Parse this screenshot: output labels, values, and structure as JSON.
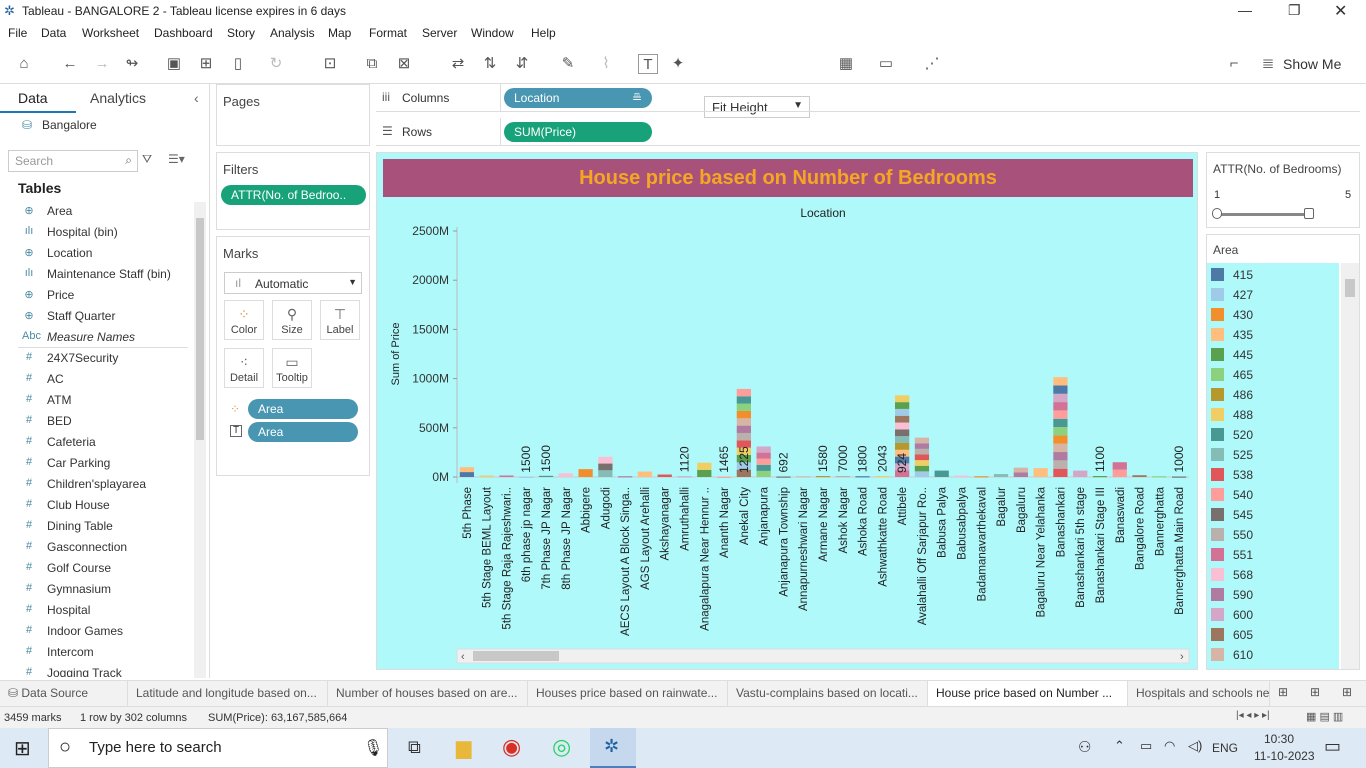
{
  "window": {
    "title": "Tableau - BANGALORE 2 - Tableau license expires in 6 days"
  },
  "menu": [
    "File",
    "Data",
    "Worksheet",
    "Dashboard",
    "Story",
    "Analysis",
    "Map",
    "Format",
    "Server",
    "Window",
    "Help"
  ],
  "toolbar": {
    "fit": "Fit Height",
    "show_me": "Show Me"
  },
  "left": {
    "tab_data": "Data",
    "tab_analytics": "Analytics",
    "datasource": "Bangalore",
    "search_placeholder": "Search",
    "tables_header": "Tables",
    "fields": [
      {
        "icon": "globe-icon",
        "glyph": "⊕",
        "name": "Area"
      },
      {
        "icon": "bin-icon",
        "glyph": "ılı",
        "name": "Hospital (bin)"
      },
      {
        "icon": "globe-icon",
        "glyph": "⊕",
        "name": "Location"
      },
      {
        "icon": "bin-icon",
        "glyph": "ılı",
        "name": "Maintenance Staff (bin)"
      },
      {
        "icon": "globe-icon",
        "glyph": "⊕",
        "name": "Price"
      },
      {
        "icon": "globe-icon",
        "glyph": "⊕",
        "name": "Staff Quarter"
      },
      {
        "icon": "abc-icon",
        "glyph": "Abc",
        "name": "Measure Names"
      },
      {
        "icon": "hash-icon",
        "glyph": "#",
        "name": "24X7Security"
      },
      {
        "icon": "hash-icon",
        "glyph": "#",
        "name": "AC"
      },
      {
        "icon": "hash-icon",
        "glyph": "#",
        "name": "ATM"
      },
      {
        "icon": "hash-icon",
        "glyph": "#",
        "name": "BED"
      },
      {
        "icon": "hash-icon",
        "glyph": "#",
        "name": "Cafeteria"
      },
      {
        "icon": "hash-icon",
        "glyph": "#",
        "name": "Car Parking"
      },
      {
        "icon": "hash-icon",
        "glyph": "#",
        "name": "Children'splayarea"
      },
      {
        "icon": "hash-icon",
        "glyph": "#",
        "name": "Club House"
      },
      {
        "icon": "hash-icon",
        "glyph": "#",
        "name": "Dining Table"
      },
      {
        "icon": "hash-icon",
        "glyph": "#",
        "name": "Gasconnection"
      },
      {
        "icon": "hash-icon",
        "glyph": "#",
        "name": "Golf Course"
      },
      {
        "icon": "hash-icon",
        "glyph": "#",
        "name": "Gymnasium"
      },
      {
        "icon": "hash-icon",
        "glyph": "#",
        "name": "Hospital"
      },
      {
        "icon": "hash-icon",
        "glyph": "#",
        "name": "Indoor Games"
      },
      {
        "icon": "hash-icon",
        "glyph": "#",
        "name": "Intercom"
      },
      {
        "icon": "hash-icon",
        "glyph": "#",
        "name": "Jogging Track"
      }
    ]
  },
  "cards": {
    "pages": "Pages",
    "filters": "Filters",
    "filter_pill": "ATTR(No. of Bedroo..",
    "marks": "Marks",
    "mark_type": "Automatic",
    "mark_buttons": [
      "Color",
      "Size",
      "Label",
      "Detail",
      "Tooltip"
    ],
    "mark_pill_color": "Area",
    "mark_pill_label": "Area"
  },
  "shelves": {
    "columns_label": "Columns",
    "columns_pill": "Location",
    "rows_label": "Rows",
    "rows_pill": "SUM(Price)"
  },
  "chart_data": {
    "type": "bar",
    "title": "House price based on Number of Bedrooms",
    "column_header": "Location",
    "ylabel": "Sum of Price",
    "yticks": [
      "0M",
      "500M",
      "1000M",
      "1500M",
      "2000M",
      "2500M"
    ],
    "ylim": [
      0,
      2500
    ],
    "categories": [
      "5th Phase",
      "5th Stage BEML Layout",
      "5th Stage Raja Rajeshwari..",
      "6th phase jp nagar",
      "7th Phase JP Nagar",
      "8th Phase JP Nagar",
      "Abbigere",
      "Adugodi",
      "AECS Layout A Block Singa..",
      "AGS Layout Arehalli",
      "Akshayanagar",
      "Amruthahalli",
      "Anagalapura Near Hennur ..",
      "Ananth Nagar",
      "Anekal City",
      "Anjanapura",
      "Anjanapura Township",
      "Annapurneshwari Nagar",
      "Armane Nagar",
      "Ashok Nagar",
      "Ashoka Road",
      "Ashwathkatte Road",
      "Attibele",
      "Avalahalli Off Sarjapur Ro..",
      "Babusa Palya",
      "Babusabpalya",
      "Badamanavarthekaval",
      "Bagalur",
      "Bagaluru",
      "Bagaluru Near Yelahanka",
      "Banashankari",
      "Banashankari 5th stage",
      "Banashankari Stage III",
      "Banaswadi",
      "Bangalore Road",
      "Bannerghatta",
      "Bannerghatta Main Road"
    ],
    "values": [
      100,
      15,
      15,
      3,
      12,
      38,
      80,
      205,
      8,
      55,
      25,
      8,
      145,
      3,
      895,
      310,
      5,
      8,
      10,
      10,
      8,
      10,
      830,
      400,
      65,
      15,
      8,
      30,
      95,
      90,
      1015,
      65,
      10,
      150,
      18,
      8,
      5
    ],
    "bar_labels": {
      "6th phase jp nagar": "1500",
      "7th Phase JP Nagar": "1500",
      "Amruthahalli": "1120",
      "Ananth Nagar": "1465",
      "Anekal City": "1225",
      "Anjanapura Township": "692",
      "Armane Nagar": "1580",
      "Ashok Nagar": "7000",
      "Ashoka Road": "1800",
      "Ashwathkatte Road": "2043",
      "Attibele": "924",
      "Banashankari Stage III": "1100",
      "Bannerghatta Main Road": "1000"
    }
  },
  "legend": {
    "slider_title": "ATTR(No. of Bedrooms)",
    "slider_min": "1",
    "slider_max": "5",
    "area_title": "Area",
    "items": [
      {
        "label": "415",
        "color": "#4e79a7"
      },
      {
        "label": "427",
        "color": "#a0cbe8"
      },
      {
        "label": "430",
        "color": "#f28e2b"
      },
      {
        "label": "435",
        "color": "#ffbe7d"
      },
      {
        "label": "445",
        "color": "#59a14f"
      },
      {
        "label": "465",
        "color": "#8cd17d"
      },
      {
        "label": "486",
        "color": "#b6992d"
      },
      {
        "label": "488",
        "color": "#f1ce63"
      },
      {
        "label": "520",
        "color": "#499894"
      },
      {
        "label": "525",
        "color": "#86bcb6"
      },
      {
        "label": "538",
        "color": "#e15759"
      },
      {
        "label": "540",
        "color": "#ff9d9a"
      },
      {
        "label": "545",
        "color": "#79706e"
      },
      {
        "label": "550",
        "color": "#bab0ac"
      },
      {
        "label": "551",
        "color": "#d37295"
      },
      {
        "label": "568",
        "color": "#fabfd2"
      },
      {
        "label": "590",
        "color": "#b07aa1"
      },
      {
        "label": "600",
        "color": "#d4a6c8"
      },
      {
        "label": "605",
        "color": "#9d7660"
      },
      {
        "label": "610",
        "color": "#d7b5a6"
      }
    ]
  },
  "sheet_tabs": [
    "Data Source",
    "Latitude and longitude based on...",
    "Number of houses based on are...",
    "Houses price based on rainwate...",
    "Vastu-complains based on locati...",
    "House price based on Number ...",
    "Hospitals and schools ne"
  ],
  "status": {
    "marks": "3459 marks",
    "rowscols": "1 row by 302 columns",
    "sum": "SUM(Price): 63,167,585,664"
  },
  "taskbar": {
    "search": "Type here to search",
    "lang": "ENG",
    "time": "10:30",
    "date": "11-10-2023"
  }
}
